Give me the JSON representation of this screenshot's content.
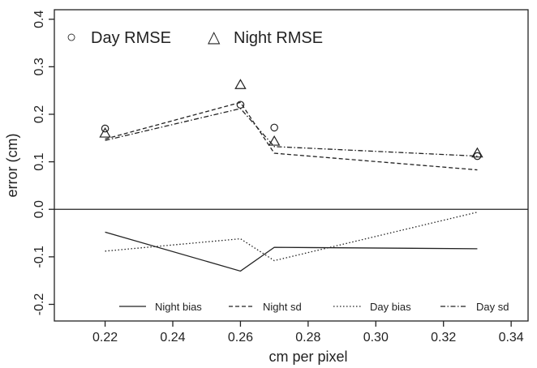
{
  "chart_data": {
    "type": "line",
    "xlabel": "cm per pixel",
    "ylabel": "error (cm)",
    "xlim": [
      0.205,
      0.345
    ],
    "ylim": [
      -0.235,
      0.42
    ],
    "x_ticks": [
      "0.22",
      "0.24",
      "0.26",
      "0.28",
      "0.30",
      "0.32",
      "0.34"
    ],
    "y_ticks": [
      "-0.2",
      "-0.1",
      "0.0",
      "0.1",
      "0.2",
      "0.3",
      "0.4"
    ],
    "reference_line_y": 0.0,
    "grid": false,
    "rmse_legend": [
      {
        "marker": "○",
        "label": "Day RMSE"
      },
      {
        "marker": "△",
        "label": "Night RMSE"
      }
    ],
    "line_legend": [
      {
        "label": "Night bias"
      },
      {
        "label": "Night sd"
      },
      {
        "label": "Day bias"
      },
      {
        "label": "Day sd"
      }
    ],
    "markers": [
      {
        "name": "Day RMSE",
        "shape": "circle",
        "x": [
          0.22,
          0.26,
          0.27,
          0.33
        ],
        "y": [
          0.17,
          0.22,
          0.172,
          0.112
        ]
      },
      {
        "name": "Night RMSE",
        "shape": "triangle",
        "x": [
          0.22,
          0.26,
          0.27,
          0.33
        ],
        "y": [
          0.16,
          0.262,
          0.143,
          0.118
        ]
      }
    ],
    "series": [
      {
        "name": "Night bias",
        "style": "solid",
        "x": [
          0.22,
          0.26,
          0.27,
          0.33
        ],
        "y": [
          -0.048,
          -0.13,
          -0.08,
          -0.083
        ]
      },
      {
        "name": "Night sd",
        "style": "dashed",
        "x": [
          0.22,
          0.26,
          0.27,
          0.33
        ],
        "y": [
          0.148,
          0.225,
          0.118,
          0.083
        ]
      },
      {
        "name": "Day bias",
        "style": "dotted",
        "x": [
          0.22,
          0.26,
          0.27,
          0.33
        ],
        "y": [
          -0.088,
          -0.062,
          -0.108,
          -0.006
        ]
      },
      {
        "name": "Day sd",
        "style": "dashdot",
        "x": [
          0.22,
          0.26,
          0.27,
          0.33
        ],
        "y": [
          0.145,
          0.212,
          0.132,
          0.112
        ]
      }
    ]
  }
}
